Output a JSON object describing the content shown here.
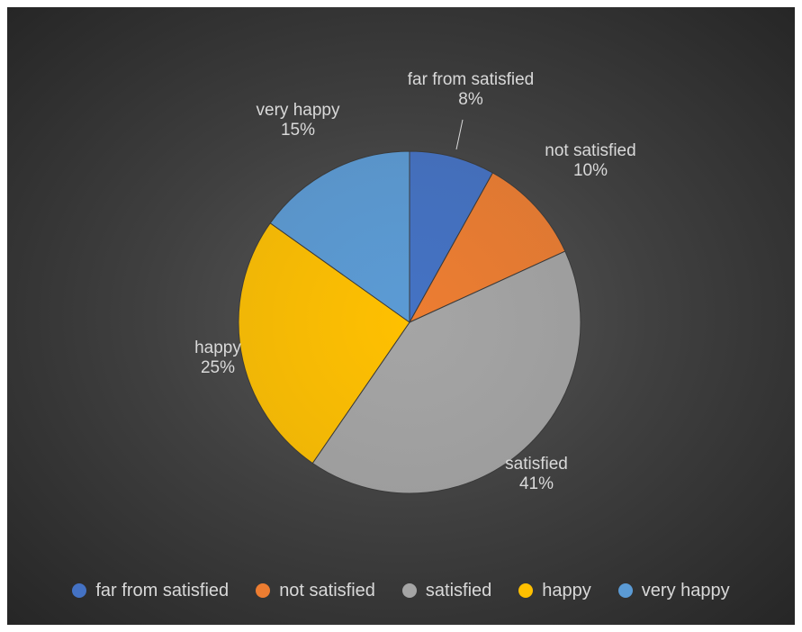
{
  "chart_data": {
    "type": "pie",
    "title": "",
    "start_angle_deg": 0,
    "direction": "clockwise",
    "slices": [
      {
        "label": "far from satisfied",
        "value": 8,
        "percent_label": "8%",
        "color": "#4472c4"
      },
      {
        "label": "not satisfied",
        "value": 10,
        "percent_label": "10%",
        "color": "#ed7d31"
      },
      {
        "label": "satisfied",
        "value": 41,
        "percent_label": "41%",
        "color": "#a5a5a5"
      },
      {
        "label": "happy",
        "value": 25,
        "percent_label": "25%",
        "color": "#ffc000"
      },
      {
        "label": "very happy",
        "value": 15,
        "percent_label": "15%",
        "color": "#5b9bd5"
      }
    ],
    "legend_position": "bottom",
    "background_color": "#404040",
    "label_color": "#d9d9d9"
  }
}
